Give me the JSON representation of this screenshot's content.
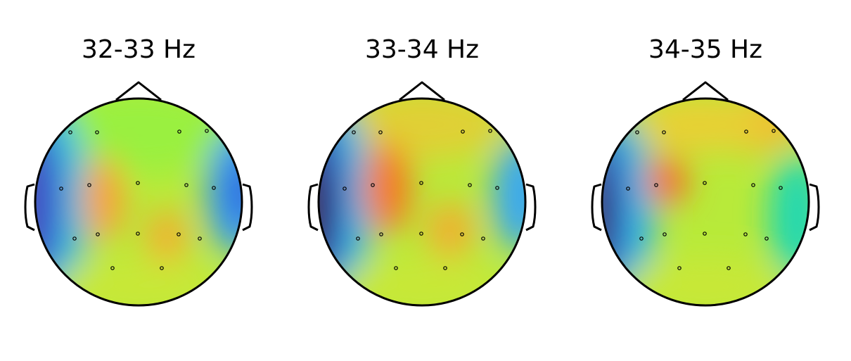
{
  "chart_data": [
    {
      "type": "topomap",
      "title": "32-33 Hz"
    },
    {
      "type": "topomap",
      "title": "33-34 Hz"
    },
    {
      "type": "topomap",
      "title": "34-35 Hz"
    }
  ]
}
